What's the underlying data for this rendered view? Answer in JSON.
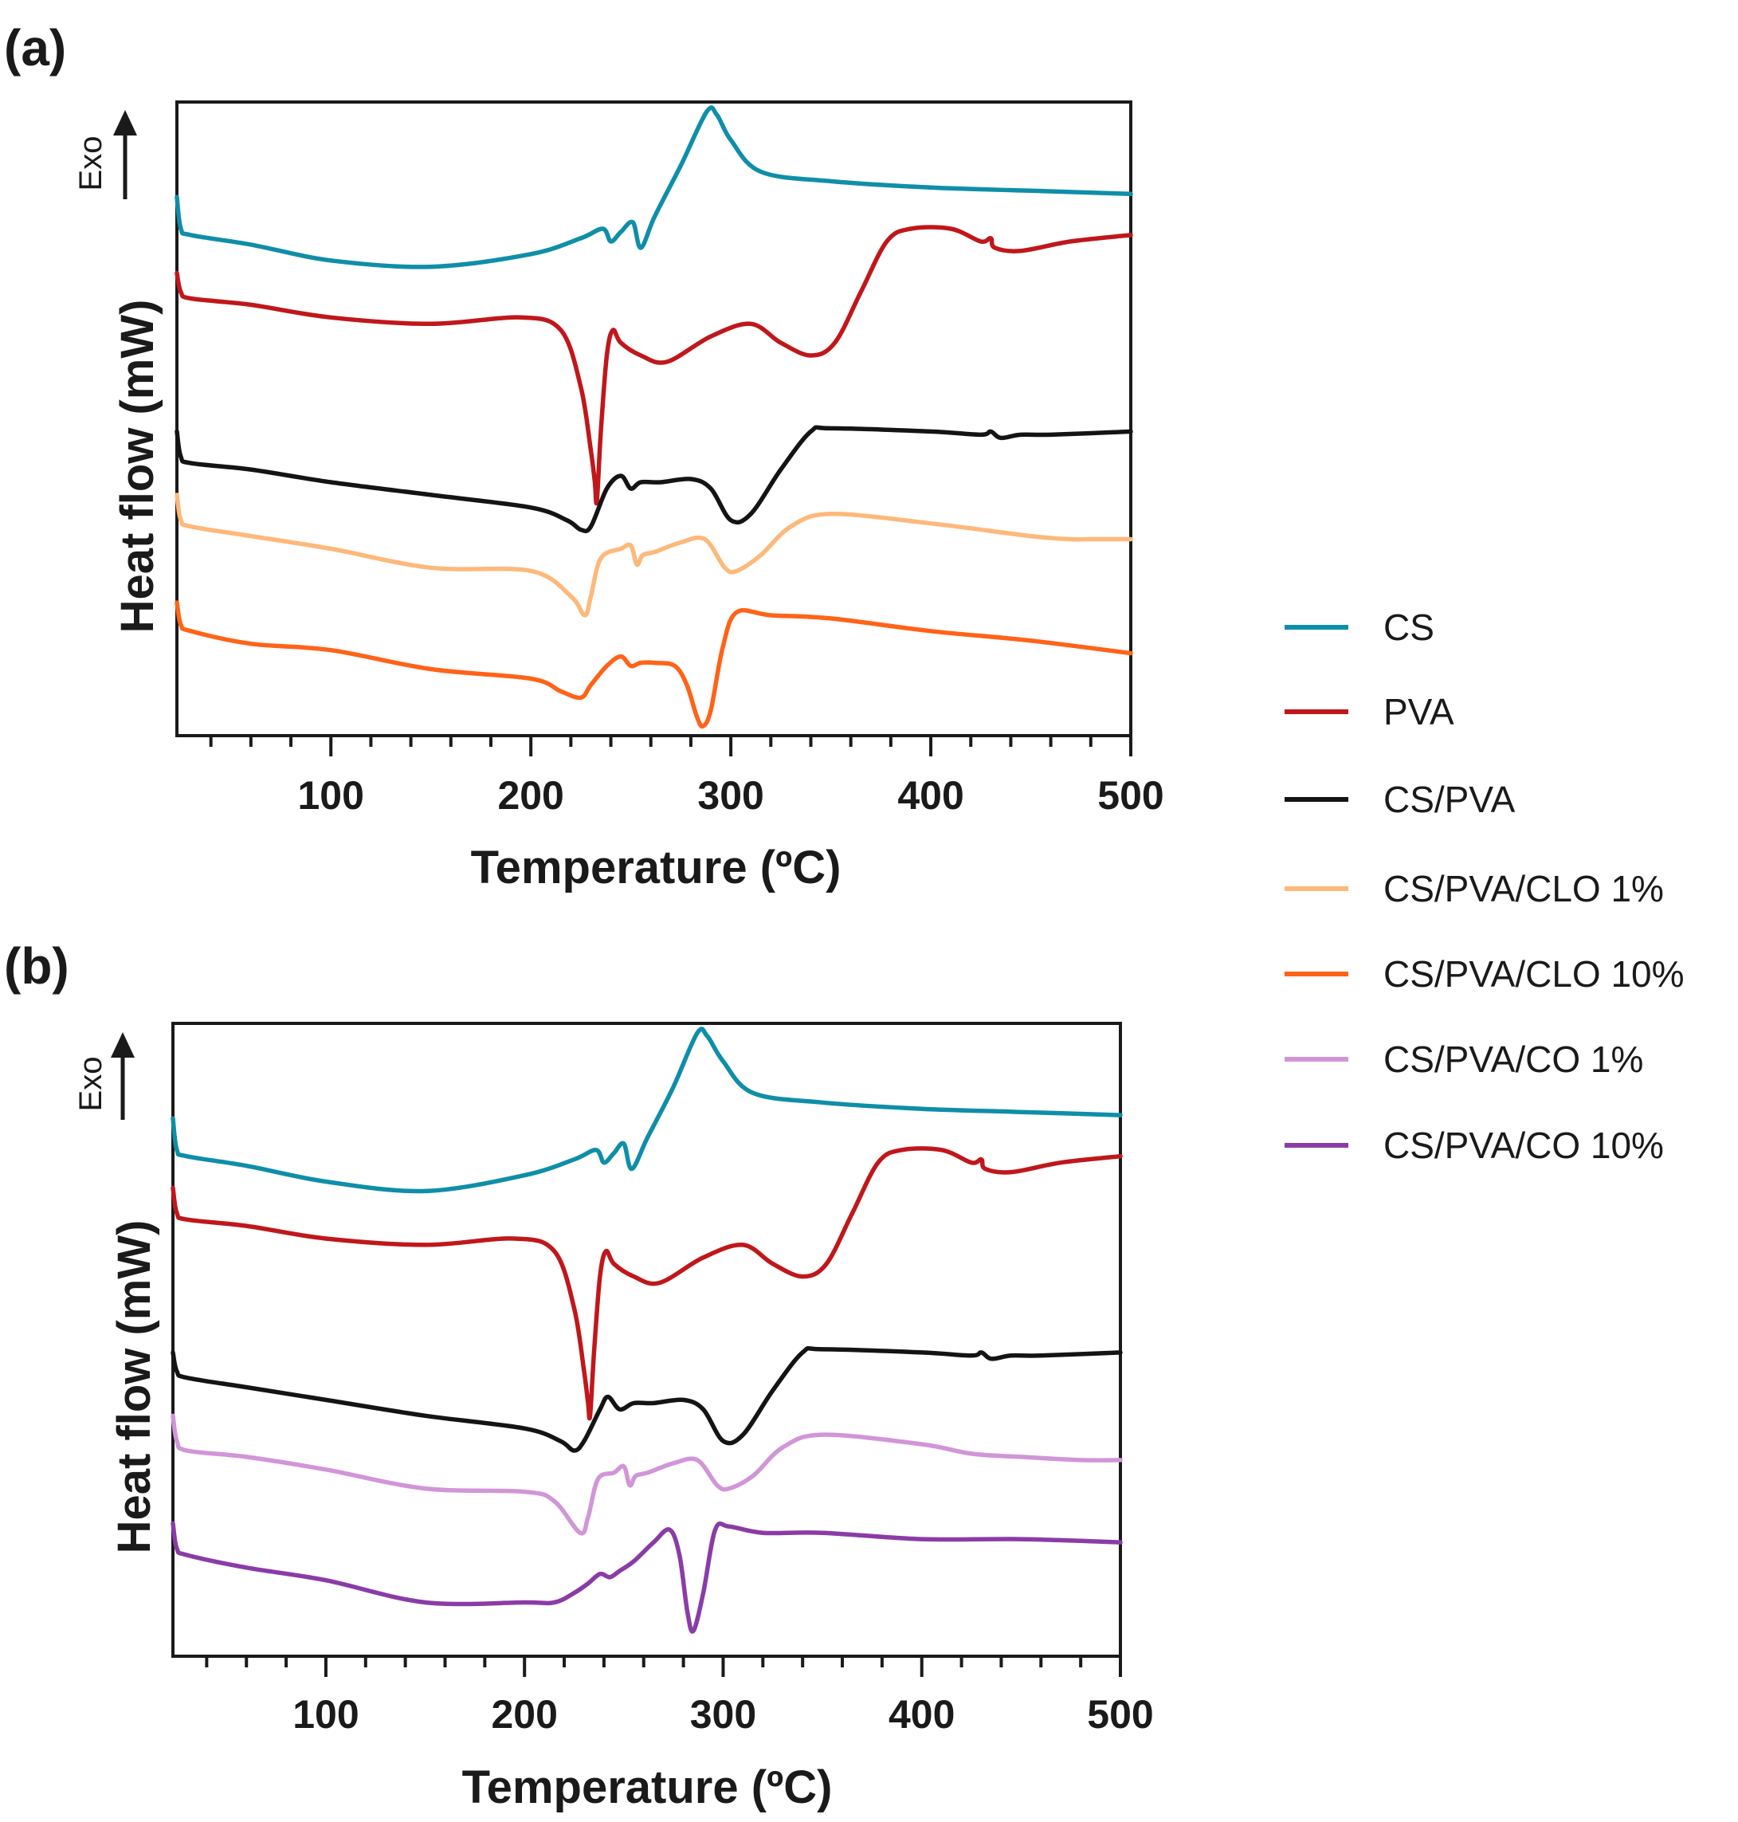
{
  "chart_data": [
    {
      "type": "line",
      "panel_label": "(a)",
      "title": "",
      "xlabel": "Temperature (ºC)",
      "ylabel": "Heat flow (mW)",
      "exo_label": "Exo",
      "xlim": [
        23,
        500
      ],
      "ylim": [
        0,
        100
      ],
      "xticks": [
        100,
        200,
        300,
        400,
        500
      ],
      "series": [
        {
          "name": "CS",
          "color": "#0f8ea8",
          "x": [
            23,
            25,
            30,
            60,
            100,
            150,
            200,
            225,
            236,
            240,
            245,
            251,
            255,
            262,
            275,
            288,
            293,
            300,
            315,
            350,
            400,
            450,
            500
          ],
          "y": [
            85,
            80,
            79,
            77.5,
            75,
            74,
            76,
            78.5,
            80,
            78,
            79.5,
            81,
            77,
            82,
            90,
            98.5,
            98,
            94,
            89,
            87.5,
            86.5,
            86,
            85.5
          ]
        },
        {
          "name": "PVA",
          "color": "#c0171b",
          "x": [
            23,
            25,
            30,
            60,
            100,
            150,
            195,
            215,
            225,
            230,
            232,
            233,
            235,
            238,
            241,
            245,
            255,
            268,
            290,
            310,
            325,
            340,
            352,
            365,
            378,
            390,
            410,
            425,
            430,
            432,
            445,
            470,
            500
          ],
          "y": [
            73,
            70,
            69,
            68,
            66,
            65,
            66,
            64,
            55,
            45,
            40,
            37,
            48,
            60,
            64,
            62,
            60,
            59,
            63,
            65,
            62,
            60,
            62,
            70,
            78,
            80,
            80,
            78,
            78.5,
            77,
            76.5,
            78,
            79
          ]
        },
        {
          "name": "CS/PVA",
          "color": "#141414",
          "x": [
            23,
            25,
            30,
            60,
            100,
            150,
            200,
            218,
            225,
            230,
            238,
            245,
            250,
            255,
            265,
            280,
            290,
            300,
            310,
            325,
            340,
            350,
            400,
            425,
            430,
            435,
            445,
            460,
            500
          ],
          "y": [
            48,
            44,
            43,
            42,
            40,
            38,
            36,
            34,
            32.5,
            33,
            39,
            41,
            39,
            40,
            40,
            40.5,
            39,
            34,
            35,
            42,
            48,
            48.5,
            48,
            47.5,
            48,
            47,
            47.5,
            47.5,
            48
          ]
        },
        {
          "name": "CS/PVA/CLO 1%",
          "color": "#fdb97b",
          "x": [
            23,
            25,
            30,
            60,
            100,
            150,
            200,
            220,
            227,
            230,
            235,
            245,
            250,
            253,
            256,
            262,
            275,
            287,
            297,
            303,
            315,
            330,
            350,
            400,
            450,
            470,
            480,
            500
          ],
          "y": [
            38,
            34,
            33,
            31.5,
            29.5,
            26.5,
            26,
            22,
            19,
            22,
            28,
            29.5,
            30,
            27,
            28.5,
            29,
            30.5,
            31,
            26.5,
            26,
            28.5,
            33,
            35,
            33.5,
            31.5,
            31,
            31,
            31
          ]
        },
        {
          "name": "CS/PVA/CLO 10%",
          "color": "#ff6318",
          "x": [
            23,
            25,
            30,
            60,
            100,
            150,
            200,
            215,
            225,
            230,
            238,
            245,
            250,
            255,
            262,
            272,
            278,
            283,
            286,
            290,
            296,
            303,
            320,
            350,
            400,
            450,
            500
          ],
          "y": [
            21,
            17.5,
            16.5,
            14.5,
            13.5,
            10.5,
            9,
            7,
            6,
            8,
            11,
            12.5,
            11,
            11.5,
            11.5,
            11,
            8,
            3,
            1.5,
            4,
            14,
            19.5,
            19,
            18.5,
            16.5,
            15,
            13
          ]
        }
      ]
    },
    {
      "type": "line",
      "panel_label": "(b)",
      "title": "",
      "xlabel": "Temperature (ºC)",
      "ylabel": "Heat flow (mW)",
      "exo_label": "Exo",
      "xlim": [
        23,
        500
      ],
      "ylim": [
        0,
        100
      ],
      "xticks": [
        100,
        200,
        300,
        400,
        500
      ],
      "series": [
        {
          "name": "CS",
          "color": "#0f8ea8",
          "x": [
            23,
            25,
            30,
            60,
            100,
            150,
            200,
            225,
            236,
            240,
            245,
            250,
            254,
            262,
            275,
            287,
            292,
            300,
            315,
            350,
            400,
            450,
            500
          ],
          "y": [
            85,
            80,
            79,
            77.5,
            75,
            73.5,
            76,
            78.5,
            80,
            78,
            79.5,
            81,
            77,
            82,
            90,
            98.5,
            98,
            94,
            89,
            87.5,
            86.5,
            86,
            85.5
          ]
        },
        {
          "name": "PVA",
          "color": "#c0171b",
          "x": [
            23,
            25,
            30,
            60,
            100,
            150,
            195,
            215,
            225,
            230,
            232,
            233,
            235,
            238,
            241,
            245,
            255,
            268,
            290,
            310,
            325,
            340,
            352,
            365,
            378,
            390,
            410,
            425,
            430,
            432,
            445,
            470,
            500
          ],
          "y": [
            74,
            70,
            69,
            68,
            66,
            65,
            66,
            64,
            55,
            45,
            40,
            38,
            48,
            60,
            64,
            62,
            60,
            59,
            63,
            65,
            62,
            60,
            62,
            70,
            78,
            80,
            80,
            78,
            78.5,
            77,
            76.5,
            78,
            79
          ]
        },
        {
          "name": "CS/PVA",
          "color": "#141414",
          "x": [
            23,
            25,
            30,
            60,
            100,
            150,
            200,
            218,
            225,
            230,
            238,
            242,
            248,
            255,
            265,
            280,
            290,
            300,
            310,
            325,
            340,
            350,
            400,
            425,
            430,
            435,
            445,
            460,
            500
          ],
          "y": [
            48,
            45,
            44,
            42.5,
            40.5,
            38,
            36,
            34,
            32.5,
            34,
            39,
            41,
            39,
            40,
            40,
            40.5,
            39,
            34,
            35,
            42,
            48,
            48.5,
            48,
            47.5,
            48,
            47,
            47.5,
            47.5,
            48
          ]
        },
        {
          "name": "CS/PVA/CO 1%",
          "color": "#d195d8",
          "x": [
            23,
            25,
            30,
            60,
            100,
            150,
            200,
            215,
            228,
            232,
            237,
            245,
            250,
            253,
            256,
            262,
            275,
            287,
            297,
            303,
            315,
            330,
            350,
            400,
            425,
            450,
            480,
            500
          ],
          "y": [
            38,
            34,
            32.5,
            31.5,
            29.5,
            26.5,
            26,
            24.5,
            19.5,
            22,
            28,
            29,
            30,
            27,
            28.5,
            29,
            30.5,
            31,
            27,
            26.5,
            28.5,
            33,
            35,
            33.5,
            32,
            31.5,
            31,
            31
          ]
        },
        {
          "name": "CS/PVA/CO 10%",
          "color": "#8a3ca6",
          "x": [
            23,
            25,
            30,
            60,
            100,
            150,
            200,
            215,
            225,
            232,
            238,
            243,
            248,
            255,
            265,
            273,
            278,
            282,
            285,
            290,
            296,
            303,
            320,
            350,
            400,
            450,
            500
          ],
          "y": [
            21,
            17,
            16,
            14,
            12,
            8.5,
            8.5,
            8.5,
            10,
            11.5,
            13,
            12.5,
            13.5,
            15,
            18,
            20,
            16,
            7,
            4,
            10,
            20,
            20.5,
            19.5,
            19.5,
            18.5,
            18.5,
            18
          ]
        }
      ]
    }
  ],
  "legend": {
    "placement": "right",
    "entries": [
      {
        "name": "CS",
        "color": "#0f8ea8"
      },
      {
        "name": "PVA",
        "color": "#c0171b"
      },
      {
        "name": "CS/PVA",
        "color": "#141414"
      },
      {
        "name": "CS/PVA/CLO 1%",
        "color": "#fdb97b"
      },
      {
        "name": "CS/PVA/CLO 10%",
        "color": "#ff6318"
      },
      {
        "name": "CS/PVA/CO 1%",
        "color": "#d195d8"
      },
      {
        "name": "CS/PVA/CO 10%",
        "color": "#8a3ca6"
      }
    ]
  }
}
